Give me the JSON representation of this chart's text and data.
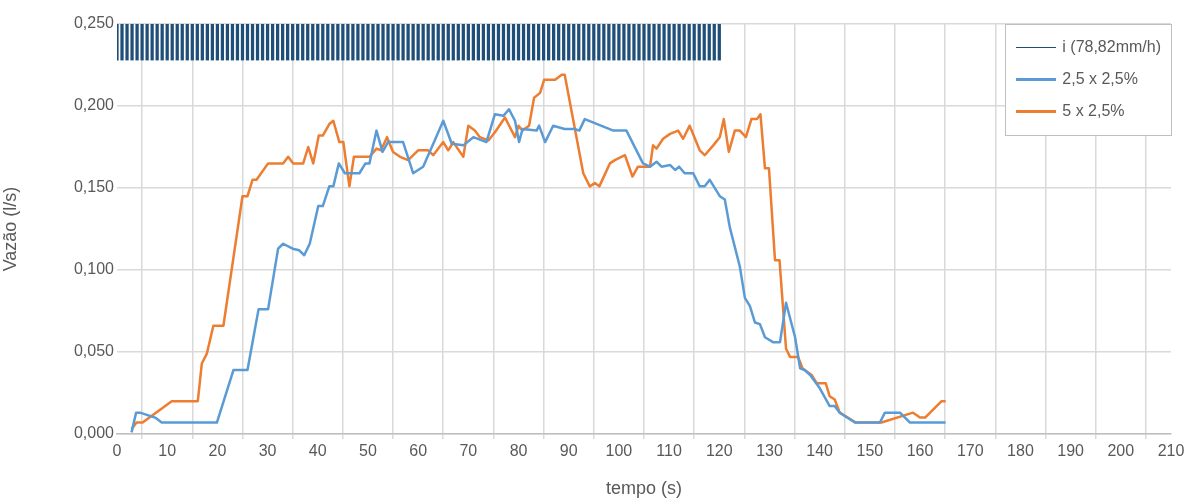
{
  "chart_data": {
    "type": "line",
    "xlabel": "tempo (s)",
    "ylabel": "Vazão (l/s)",
    "xlim": [
      0,
      210
    ],
    "xticks": [
      0,
      10,
      20,
      30,
      40,
      50,
      60,
      70,
      80,
      90,
      100,
      110,
      120,
      130,
      140,
      150,
      160,
      170,
      180,
      190,
      200,
      210
    ],
    "ylim": [
      0,
      0.25
    ],
    "yticks": [
      {
        "value": 0,
        "label": "0,000"
      },
      {
        "value": 0.05,
        "label": "0,050"
      },
      {
        "value": 0.1,
        "label": "0,100"
      },
      {
        "value": 0.15,
        "label": "0,150"
      },
      {
        "value": 0.2,
        "label": "0,200"
      },
      {
        "value": 0.25,
        "label": "0,250"
      }
    ],
    "grid": true,
    "legend": "top right",
    "marker": "none",
    "series": [
      {
        "name": "i (78,82mm/h)",
        "type": "bar",
        "color": "#1f4e79",
        "x": [
          0,
          1,
          2,
          3,
          4,
          5,
          6,
          7,
          8,
          9,
          10,
          11,
          12,
          13,
          14,
          15,
          16,
          17,
          18,
          19,
          20,
          21,
          22,
          23,
          24,
          25,
          26,
          27,
          28,
          29,
          30,
          31,
          32,
          33,
          34,
          35,
          36,
          37,
          38,
          39,
          40,
          41,
          42,
          43,
          44,
          45,
          46,
          47,
          48,
          49,
          50,
          51,
          52,
          53,
          54,
          55,
          56,
          57,
          58,
          59,
          60,
          61,
          62,
          63,
          64,
          65,
          66,
          67,
          68,
          69,
          70,
          71,
          72,
          73,
          74,
          75,
          76,
          77,
          78,
          79,
          80,
          81,
          82,
          83,
          84,
          85,
          86,
          87,
          88,
          89,
          90,
          91,
          92,
          93,
          94,
          95,
          96,
          97,
          98,
          99,
          100,
          101,
          102,
          103,
          104,
          105,
          106,
          107,
          108,
          109,
          110,
          111,
          112,
          113,
          114,
          115,
          116,
          117,
          118,
          119,
          120
        ],
        "base": [
          0.228,
          0.228,
          0.228,
          0.228,
          0.228,
          0.228,
          0.228,
          0.228,
          0.228,
          0.228,
          0.228,
          0.228,
          0.228,
          0.228,
          0.228,
          0.228,
          0.228,
          0.228,
          0.228,
          0.228,
          0.228,
          0.228,
          0.228,
          0.228,
          0.228,
          0.228,
          0.228,
          0.228,
          0.228,
          0.228,
          0.228,
          0.228,
          0.228,
          0.228,
          0.228,
          0.228,
          0.228,
          0.228,
          0.228,
          0.228,
          0.228,
          0.228,
          0.228,
          0.228,
          0.228,
          0.228,
          0.228,
          0.228,
          0.228,
          0.228,
          0.228,
          0.228,
          0.228,
          0.228,
          0.228,
          0.228,
          0.228,
          0.228,
          0.228,
          0.228,
          0.228,
          0.228,
          0.228,
          0.228,
          0.228,
          0.228,
          0.228,
          0.228,
          0.228,
          0.228,
          0.228,
          0.228,
          0.228,
          0.228,
          0.228,
          0.228,
          0.228,
          0.228,
          0.228,
          0.228,
          0.228,
          0.228,
          0.228,
          0.228,
          0.228,
          0.228,
          0.228,
          0.228,
          0.228,
          0.228,
          0.228,
          0.228,
          0.228,
          0.228,
          0.228,
          0.228,
          0.228,
          0.228,
          0.228,
          0.228,
          0.228,
          0.228,
          0.228,
          0.228,
          0.228,
          0.228,
          0.228,
          0.228,
          0.228,
          0.228,
          0.228,
          0.228,
          0.228,
          0.228,
          0.228,
          0.228,
          0.228,
          0.228,
          0.228,
          0.228,
          0.228
        ],
        "values": [
          0.022,
          0.022,
          0.022,
          0.022,
          0.022,
          0.022,
          0.022,
          0.022,
          0.022,
          0.022,
          0.022,
          0.022,
          0.022,
          0.022,
          0.022,
          0.022,
          0.022,
          0.022,
          0.022,
          0.022,
          0.022,
          0.022,
          0.022,
          0.022,
          0.022,
          0.022,
          0.022,
          0.022,
          0.022,
          0.022,
          0.022,
          0.022,
          0.022,
          0.022,
          0.022,
          0.022,
          0.022,
          0.022,
          0.022,
          0.022,
          0.022,
          0.022,
          0.022,
          0.022,
          0.022,
          0.022,
          0.022,
          0.022,
          0.022,
          0.022,
          0.022,
          0.022,
          0.022,
          0.022,
          0.022,
          0.022,
          0.022,
          0.022,
          0.022,
          0.022,
          0.022,
          0.022,
          0.022,
          0.022,
          0.022,
          0.022,
          0.022,
          0.022,
          0.022,
          0.022,
          0.022,
          0.022,
          0.022,
          0.022,
          0.022,
          0.022,
          0.022,
          0.022,
          0.022,
          0.022,
          0.022,
          0.022,
          0.022,
          0.022,
          0.022,
          0.022,
          0.022,
          0.022,
          0.022,
          0.022,
          0.022,
          0.022,
          0.022,
          0.022,
          0.022,
          0.022,
          0.022,
          0.022,
          0.022,
          0.022,
          0.022,
          0.022,
          0.022,
          0.022,
          0.022,
          0.022,
          0.022,
          0.022,
          0.022,
          0.022,
          0.022,
          0.022,
          0.022,
          0.022,
          0.022,
          0.022,
          0.022,
          0.022,
          0.022,
          0.022,
          0.022
        ]
      },
      {
        "name": "2,5 x 2,5%",
        "color": "#5b9bd5",
        "x": [
          2.9,
          3.8,
          4.6,
          7.6,
          8.9,
          19.9,
          23.2,
          26,
          28.2,
          30.1,
          32.1,
          33.1,
          35,
          36.3,
          37.3,
          38.4,
          40.1,
          41,
          42.3,
          43.1,
          44.2,
          45.4,
          48.3,
          49.5,
          50.3,
          51.7,
          52.9,
          54,
          57,
          59,
          61,
          63.3,
          65,
          66.7,
          69,
          71,
          73.6,
          75.3,
          77,
          78.1,
          79.3,
          80.1,
          80.8,
          83.6,
          84.1,
          85.3,
          86.9,
          89.2,
          91.2,
          92.1,
          93.2,
          98.9,
          101.5,
          104.8,
          106.2,
          107.5,
          108.5,
          110.2,
          111.2,
          112,
          113.1,
          114.8,
          116.1,
          117.1,
          118.1,
          120.1,
          121.1,
          122.1,
          124.1,
          125.1,
          126.1,
          127.1,
          128.1,
          129.1,
          130.7,
          132.1,
          133.3,
          135.1,
          136.1,
          137,
          138.1,
          140,
          142,
          143,
          144,
          147,
          152,
          153,
          156,
          158,
          165.1
        ],
        "values": [
          0.001,
          0.013,
          0.013,
          0.01,
          0.007,
          0.007,
          0.039,
          0.039,
          0.076,
          0.076,
          0.113,
          0.116,
          0.113,
          0.112,
          0.109,
          0.116,
          0.139,
          0.139,
          0.151,
          0.151,
          0.165,
          0.159,
          0.159,
          0.165,
          0.165,
          0.185,
          0.172,
          0.178,
          0.178,
          0.159,
          0.163,
          0.179,
          0.191,
          0.177,
          0.176,
          0.181,
          0.178,
          0.195,
          0.194,
          0.198,
          0.191,
          0.178,
          0.186,
          0.185,
          0.188,
          0.178,
          0.188,
          0.186,
          0.186,
          0.185,
          0.192,
          0.185,
          0.185,
          0.165,
          0.163,
          0.166,
          0.163,
          0.164,
          0.161,
          0.163,
          0.159,
          0.159,
          0.151,
          0.151,
          0.155,
          0.145,
          0.143,
          0.126,
          0.102,
          0.083,
          0.078,
          0.068,
          0.067,
          0.059,
          0.056,
          0.056,
          0.08,
          0.059,
          0.04,
          0.039,
          0.036,
          0.028,
          0.017,
          0.017,
          0.013,
          0.007,
          0.007,
          0.013,
          0.013,
          0.007,
          0.007
        ]
      },
      {
        "name": "5 x 2,5%",
        "color": "#ed7d31",
        "x": [
          2.9,
          3.9,
          5.1,
          10.9,
          16.1,
          16.9,
          17.9,
          19.2,
          21.2,
          25,
          26,
          27,
          27.8,
          30.1,
          33.1,
          34.1,
          35.1,
          37.1,
          38.1,
          39.1,
          40.2,
          41,
          42.3,
          43.1,
          44.3,
          45.1,
          46.3,
          47.2,
          50.3,
          51.7,
          52.6,
          53.8,
          55,
          56.4,
          58,
          60,
          62,
          63,
          65,
          66,
          67,
          69,
          70,
          71.3,
          72.3,
          74,
          75.3,
          77.3,
          79.3,
          80,
          80.8,
          82.1,
          83.1,
          84.3,
          85.1,
          87.3,
          88.6,
          89.2,
          92.9,
          94.2,
          95.2,
          96.1,
          98.2,
          99.2,
          101.2,
          102.7,
          103.8,
          106.2,
          106.8,
          107.5,
          108.8,
          110.2,
          111.8,
          112.8,
          114.1,
          116.1,
          117.1,
          118.8,
          120.1,
          120.9,
          121.9,
          123.1,
          124.1,
          125.3,
          126.4,
          127.5,
          128.2,
          129.1,
          129.9,
          131.1,
          132,
          133.3,
          134.1,
          135.7,
          136.6,
          138.4,
          139.4,
          141.2,
          142,
          143,
          144,
          147.2,
          152.3,
          158.6,
          160,
          161,
          164.3,
          165.1
        ],
        "values": [
          0.003,
          0.007,
          0.007,
          0.02,
          0.02,
          0.043,
          0.049,
          0.066,
          0.066,
          0.145,
          0.145,
          0.155,
          0.155,
          0.165,
          0.165,
          0.169,
          0.165,
          0.165,
          0.175,
          0.165,
          0.182,
          0.182,
          0.189,
          0.191,
          0.178,
          0.178,
          0.151,
          0.169,
          0.169,
          0.174,
          0.173,
          0.181,
          0.172,
          0.169,
          0.167,
          0.173,
          0.173,
          0.17,
          0.178,
          0.173,
          0.178,
          0.169,
          0.188,
          0.185,
          0.181,
          0.179,
          0.184,
          0.193,
          0.181,
          0.188,
          0.185,
          0.188,
          0.205,
          0.208,
          0.216,
          0.216,
          0.219,
          0.219,
          0.159,
          0.151,
          0.153,
          0.151,
          0.165,
          0.167,
          0.17,
          0.157,
          0.163,
          0.163,
          0.176,
          0.174,
          0.18,
          0.183,
          0.185,
          0.18,
          0.188,
          0.173,
          0.17,
          0.176,
          0.181,
          0.192,
          0.172,
          0.185,
          0.185,
          0.181,
          0.192,
          0.192,
          0.195,
          0.162,
          0.162,
          0.106,
          0.106,
          0.052,
          0.047,
          0.047,
          0.04,
          0.036,
          0.031,
          0.031,
          0.023,
          0.021,
          0.013,
          0.007,
          0.007,
          0.013,
          0.01,
          0.01,
          0.02,
          0.02
        ]
      }
    ]
  }
}
